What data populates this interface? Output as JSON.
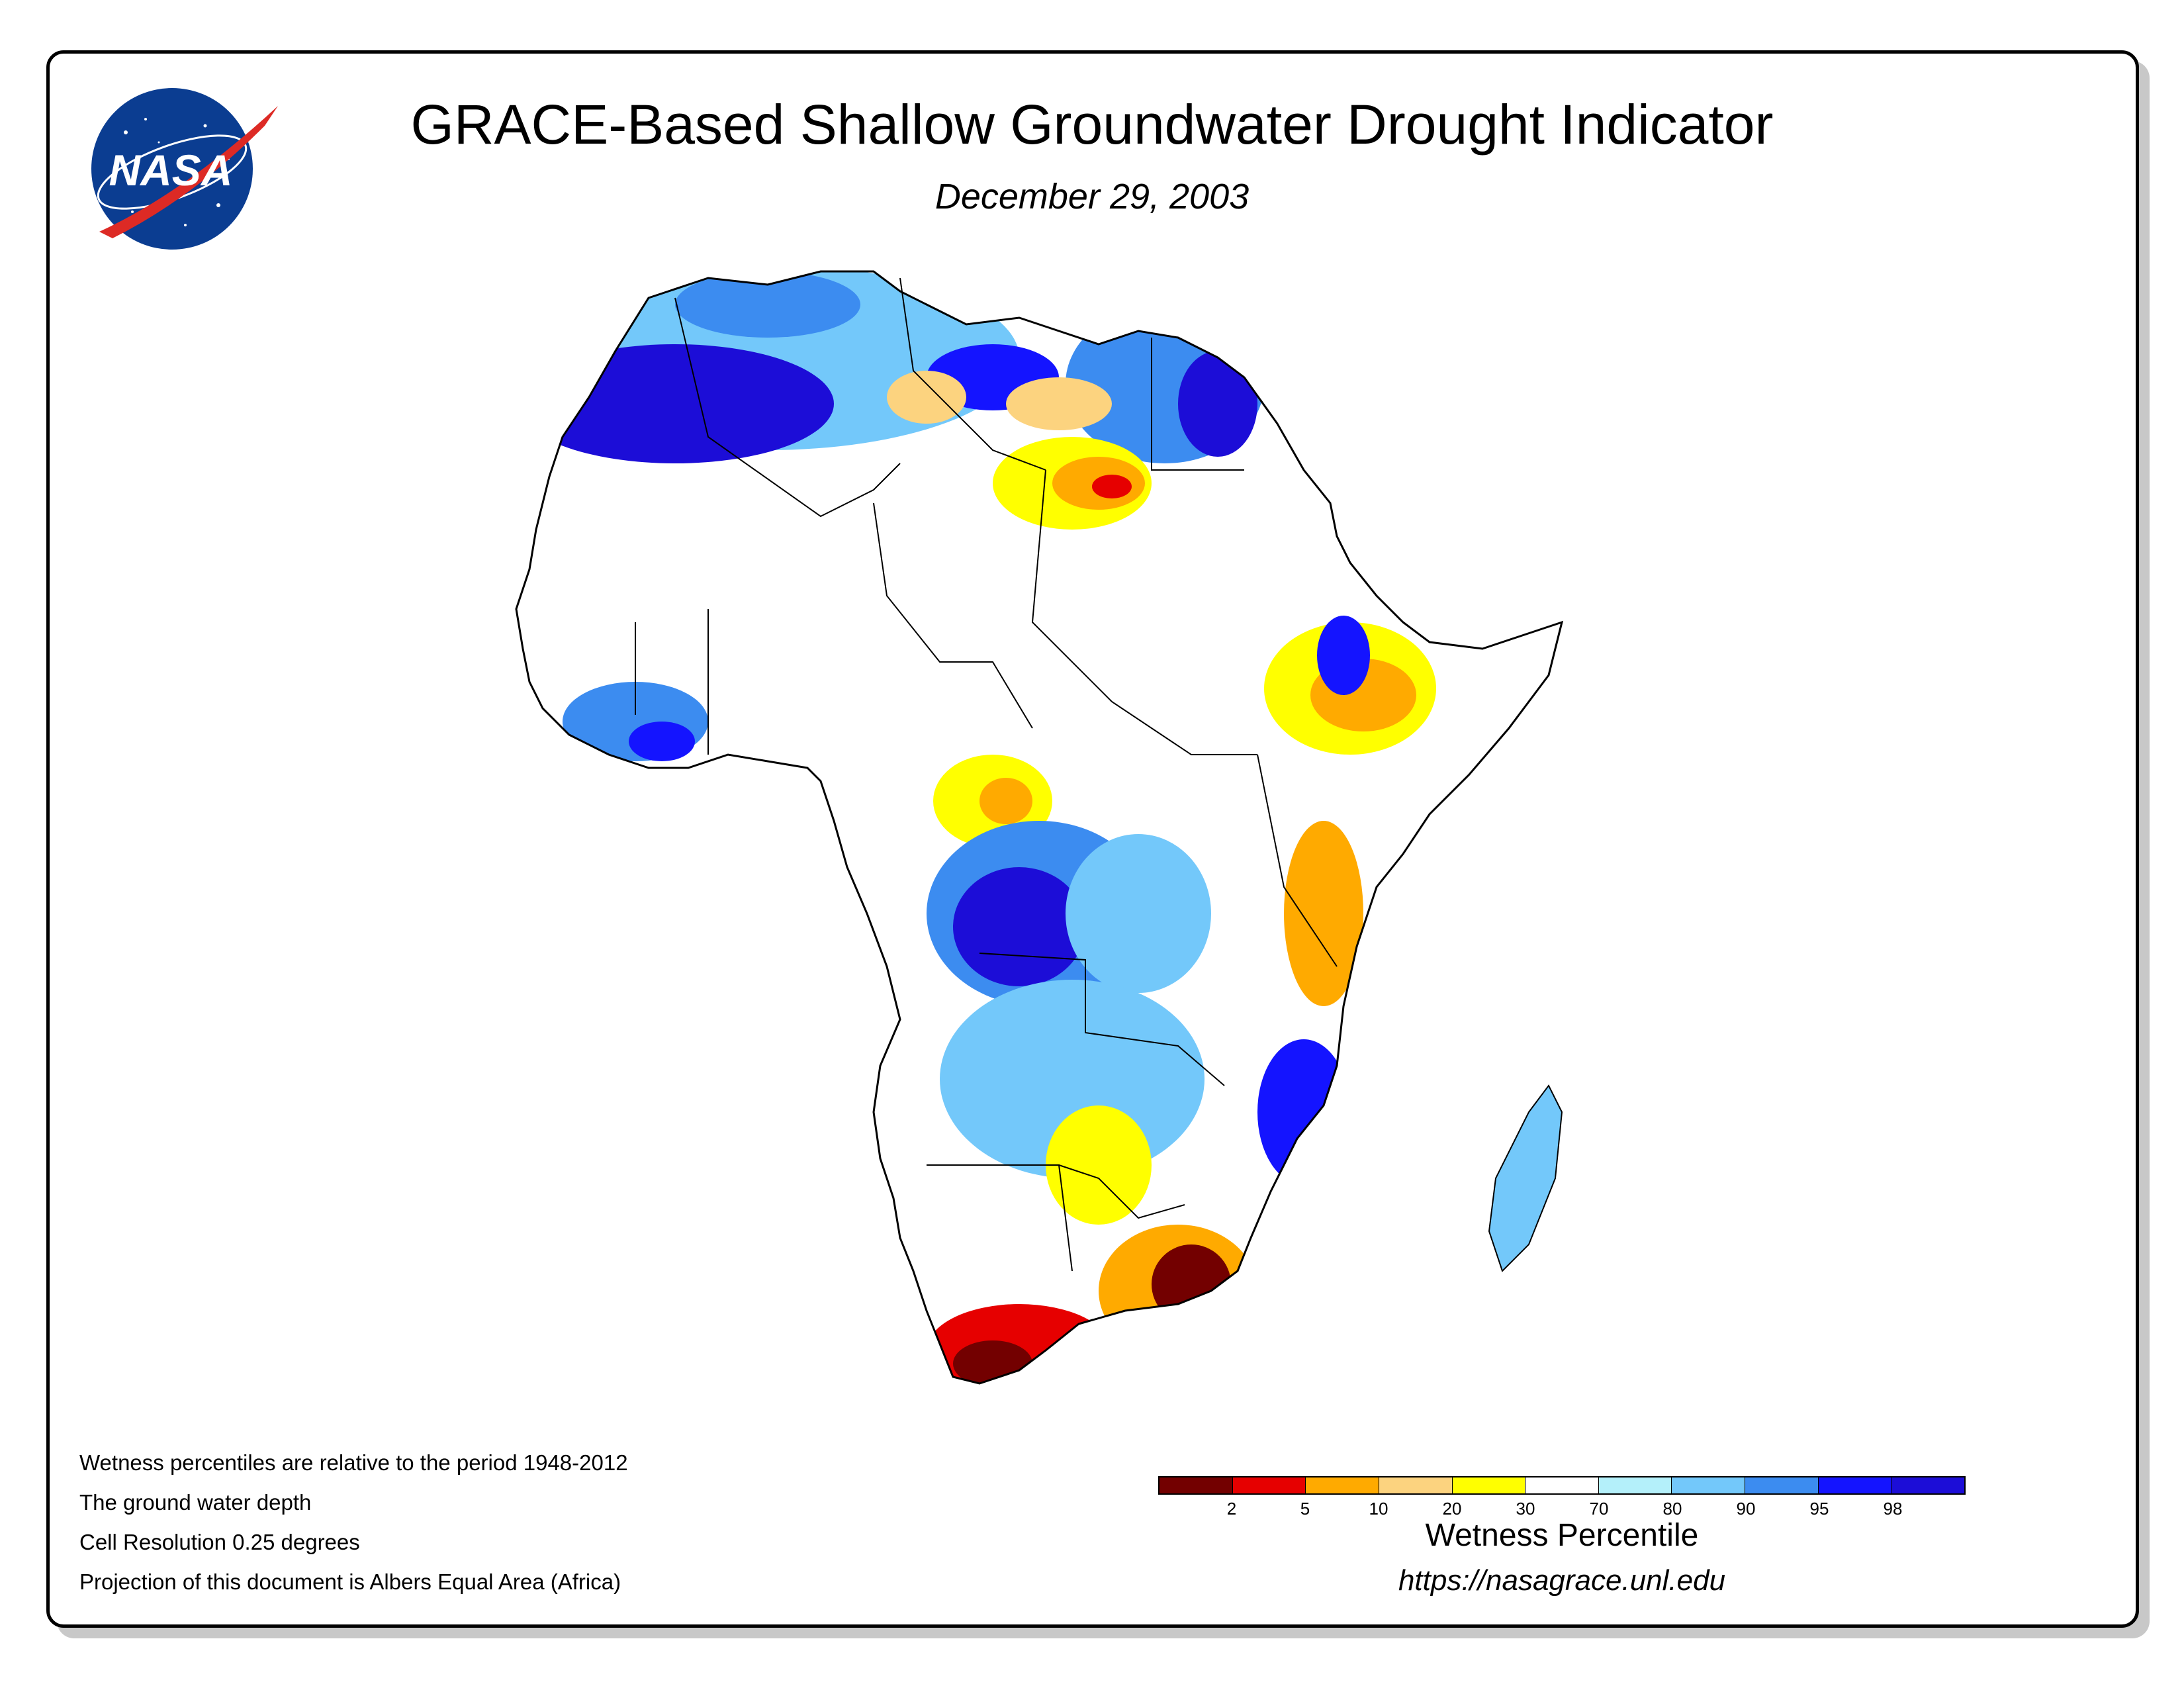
{
  "header": {
    "title": "GRACE-Based Shallow Groundwater Drought Indicator",
    "date": "December 29, 2003"
  },
  "logo": {
    "text": "NASA",
    "icon": "nasa-meatball-logo"
  },
  "map": {
    "region": "Africa",
    "icon": "africa-map"
  },
  "notes": [
    "Wetness percentiles are relative to the period 1948-2012",
    "The ground water depth",
    "Cell Resolution 0.25 degrees",
    "Projection of this document is Albers Equal Area (Africa)"
  ],
  "legend": {
    "title": "Wetness Percentile",
    "ticks": [
      "2",
      "5",
      "10",
      "20",
      "30",
      "70",
      "80",
      "90",
      "95",
      "98"
    ],
    "colors": [
      "#730000",
      "#e60000",
      "#ffaa00",
      "#fcd37f",
      "#ffff00",
      "#ffffff",
      "#b4f0fa",
      "#73c8fa",
      "#3c8cf0",
      "#1414ff",
      "#1c0dd7"
    ]
  },
  "footer": {
    "url": "https://nasagrace.unl.edu"
  }
}
